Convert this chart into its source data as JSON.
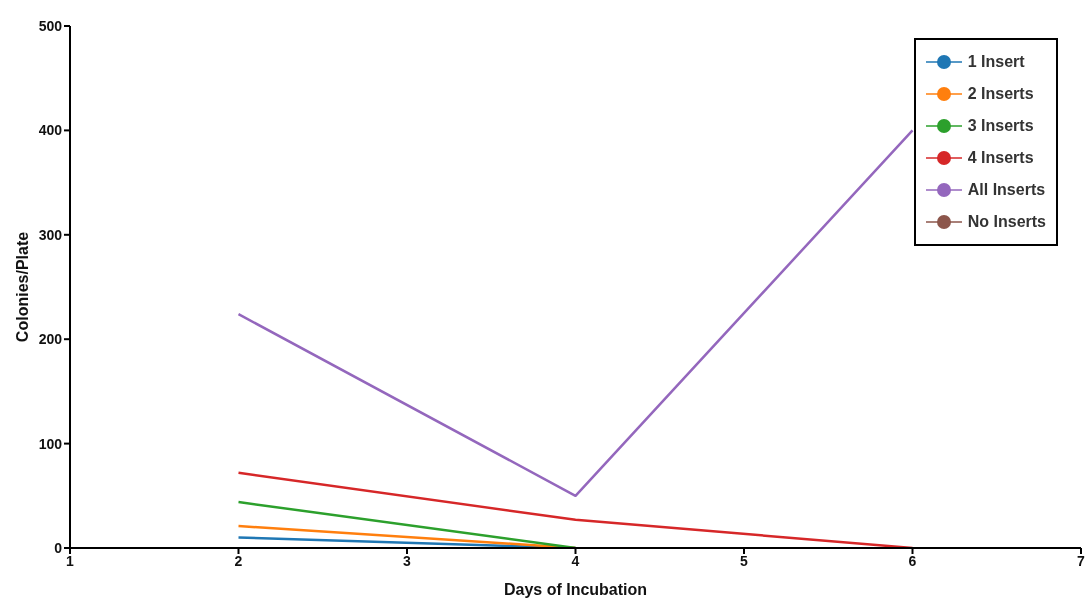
{
  "chart_data": {
    "type": "line",
    "xlabel": "Days of Incubation",
    "ylabel": "Colonies/Plate",
    "x": [
      2,
      4,
      6
    ],
    "series": [
      {
        "name": "1 Insert",
        "color": "#1f77b4",
        "values": [
          10,
          0,
          null
        ]
      },
      {
        "name": "2 Inserts",
        "color": "#ff7f0e",
        "values": [
          21,
          0,
          null
        ]
      },
      {
        "name": "3 Inserts",
        "color": "#2ca02c",
        "values": [
          44,
          0,
          null
        ]
      },
      {
        "name": "4 Inserts",
        "color": "#d62728",
        "values": [
          72,
          27,
          0
        ]
      },
      {
        "name": "All Inserts",
        "color": "#9467bd",
        "values": [
          224,
          50,
          400
        ]
      },
      {
        "name": "No Inserts",
        "color": "#8c564b",
        "values": [
          null,
          null,
          null
        ]
      }
    ],
    "xlim": [
      1,
      7
    ],
    "xticks": [
      1,
      2,
      3,
      4,
      5,
      6,
      7
    ],
    "ylim": [
      0,
      500
    ],
    "yticks": [
      0,
      100,
      200,
      300,
      400,
      500
    ],
    "grid": false,
    "legend": "top right",
    "marker": "none",
    "line_style": "solid"
  }
}
